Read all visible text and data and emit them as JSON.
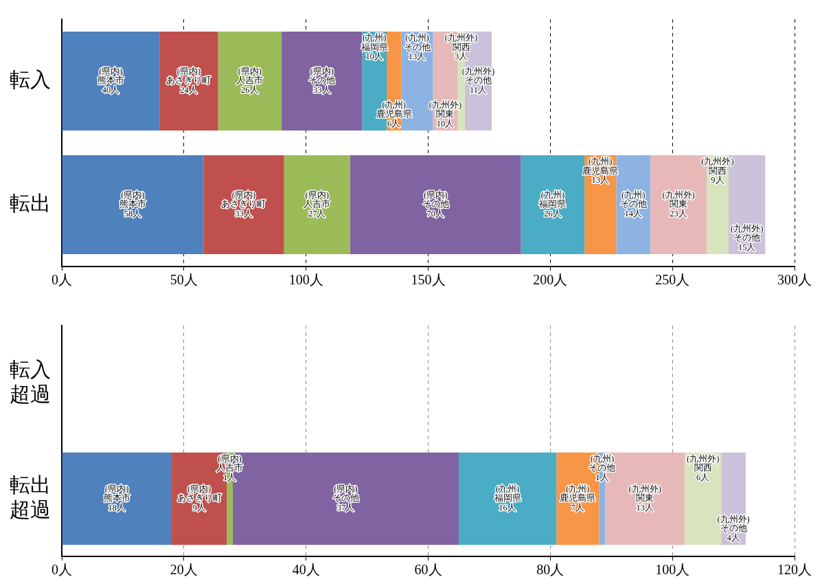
{
  "chart_data": [
    {
      "type": "bar",
      "orientation": "horizontal",
      "stacked": true,
      "grid": "x",
      "legend": false,
      "categories": [
        "転入",
        "転出"
      ],
      "xlim": [
        0,
        300
      ],
      "xticks": [
        {
          "value": 0,
          "label": "0人"
        },
        {
          "value": 50,
          "label": "50人"
        },
        {
          "value": 100,
          "label": "100人"
        },
        {
          "value": 150,
          "label": "150人"
        },
        {
          "value": 200,
          "label": "200人"
        },
        {
          "value": 250,
          "label": "250人"
        },
        {
          "value": 300,
          "label": "300人"
        }
      ],
      "series": [
        {
          "color": "#4f81bd",
          "values": [
            40,
            58
          ],
          "value_labels": [
            "(県内)\n熊本市\n40人",
            "(県内)\n熊本市\n58人"
          ]
        },
        {
          "color": "#c0504d",
          "values": [
            24,
            33
          ],
          "value_labels": [
            "(県内)\nあさぎり町\n24人",
            "(県内)\nあさぎり町\n33人"
          ]
        },
        {
          "color": "#9bbb59",
          "values": [
            26,
            27
          ],
          "value_labels": [
            "(県内)\n人吉市\n26人",
            "(県内)\n人吉市\n27人"
          ]
        },
        {
          "color": "#8064a2",
          "values": [
            33,
            70
          ],
          "value_labels": [
            "(県内)\nその他\n33人",
            "(県内)\nその他\n70人"
          ]
        },
        {
          "color": "#4bacc6",
          "values": [
            10,
            26
          ],
          "value_labels": [
            "(九州)\n福岡県\n10人",
            "(九州)\n福岡県\n26人"
          ]
        },
        {
          "color": "#f79646",
          "values": [
            6,
            13
          ],
          "value_labels": [
            "(九州)\n鹿児島県\n6人",
            "(九州)\n鹿児島県\n13人"
          ]
        },
        {
          "color": "#8db3e2",
          "values": [
            13,
            14
          ],
          "value_labels": [
            "(九州)\nその他\n13人",
            "(九州)\nその他\n14人"
          ]
        },
        {
          "color": "#e6b9b8",
          "values": [
            10,
            23
          ],
          "value_labels": [
            "(九州外)\n関東\n10人",
            "(九州外)\n関東\n23人"
          ]
        },
        {
          "color": "#d7e4bd",
          "values": [
            3,
            9
          ],
          "value_labels": [
            "(九州外)\n関西\n3人",
            "(九州外)\n関西\n9人"
          ]
        },
        {
          "color": "#ccc1da",
          "values": [
            11,
            15
          ],
          "value_labels": [
            "(九州外)\nその他\n11人",
            "(九州外)\nその他\n15人"
          ]
        }
      ]
    },
    {
      "type": "bar",
      "orientation": "horizontal",
      "stacked": true,
      "grid": "x",
      "legend": false,
      "categories": [
        "転入超過",
        "転出超過"
      ],
      "xlim": [
        0,
        120
      ],
      "xticks": [
        {
          "value": 0,
          "label": "0人"
        },
        {
          "value": 20,
          "label": "20人"
        },
        {
          "value": 40,
          "label": "40人"
        },
        {
          "value": 60,
          "label": "60人"
        },
        {
          "value": 80,
          "label": "80人"
        },
        {
          "value": 100,
          "label": "100人"
        },
        {
          "value": 120,
          "label": "120人"
        }
      ],
      "series": [
        {
          "color": "#4f81bd",
          "values": [
            null,
            18
          ],
          "value_labels": [
            null,
            "(県内)\n熊本市\n18人"
          ]
        },
        {
          "color": "#c0504d",
          "values": [
            null,
            9
          ],
          "value_labels": [
            null,
            "(県内)\nあさぎり町\n9人"
          ]
        },
        {
          "color": "#9bbb59",
          "values": [
            null,
            1
          ],
          "value_labels": [
            null,
            "(県内)\n人吉市\n1人"
          ]
        },
        {
          "color": "#8064a2",
          "values": [
            null,
            37
          ],
          "value_labels": [
            null,
            "(県内)\nその他\n37人"
          ]
        },
        {
          "color": "#4bacc6",
          "values": [
            null,
            16
          ],
          "value_labels": [
            null,
            "(九州)\n福岡県\n16人"
          ]
        },
        {
          "color": "#f79646",
          "values": [
            null,
            7
          ],
          "value_labels": [
            null,
            "(九州)\n鹿児島県\n7人"
          ]
        },
        {
          "color": "#8db3e2",
          "values": [
            null,
            1
          ],
          "value_labels": [
            null,
            "(九州)\nその他\n1人"
          ]
        },
        {
          "color": "#e6b9b8",
          "values": [
            null,
            13
          ],
          "value_labels": [
            null,
            "(九州外)\n関東\n13人"
          ]
        },
        {
          "color": "#d7e4bd",
          "values": [
            null,
            6
          ],
          "value_labels": [
            null,
            "(九州外)\n関西\n6人"
          ]
        },
        {
          "color": "#ccc1da",
          "values": [
            null,
            4
          ],
          "value_labels": [
            null,
            "(九州外)\nその他\n4人"
          ]
        }
      ]
    }
  ]
}
